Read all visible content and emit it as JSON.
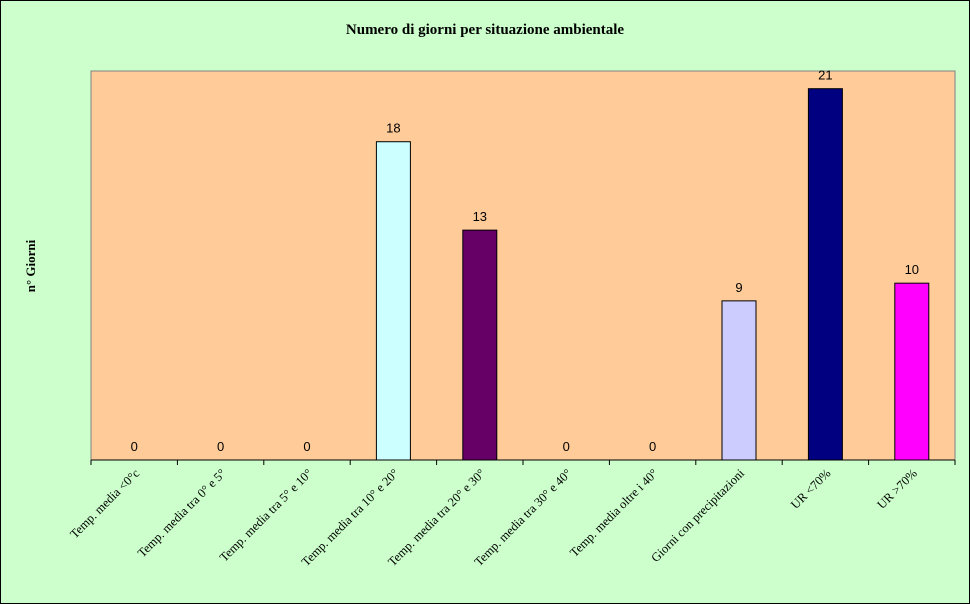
{
  "chart_data": {
    "type": "bar",
    "title": "Numero di giorni per situazione ambientale",
    "ylabel": "n° Giorni",
    "xlabel": "",
    "ylim": [
      0,
      22
    ],
    "grid": false,
    "legend": "none",
    "categories": [
      "Temp. media <0°c",
      "Temp. media tra 0° e 5°",
      "Temp. media tra 5° e 10°",
      "Temp. media tra 10° e 20°",
      "Temp. media tra 20° e 30°",
      "Temp. media tra 30° e 40°",
      "Temp. media oltre i 40°",
      "Giorni con precipitazioni",
      "UR <70%",
      "UR >70%"
    ],
    "values": [
      0,
      0,
      0,
      18,
      13,
      0,
      0,
      9,
      21,
      10
    ],
    "colors": [
      "#99ccff",
      "#99ccff",
      "#99ccff",
      "#ccffff",
      "#660066",
      "#99ccff",
      "#99ccff",
      "#ccccff",
      "#000080",
      "#ff00ff"
    ],
    "plot_background": "#ffcc99",
    "chart_background": "#ccffcc"
  }
}
